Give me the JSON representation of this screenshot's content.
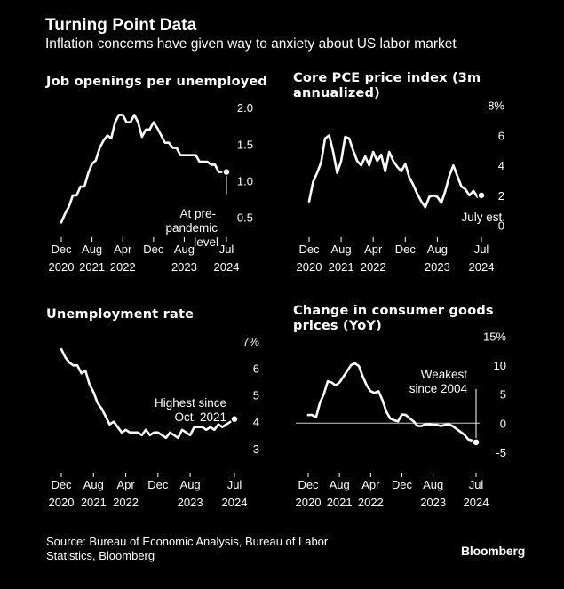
{
  "header": {
    "title": "Turning Point Data",
    "subtitle": "Inflation concerns have given way to anxiety about US labor market"
  },
  "footer": {
    "source": "Source: Bureau of Economic Analysis, Bureau of Labor Statistics, Bloomberg",
    "brand": "Bloomberg"
  },
  "colors": {
    "background": "#000000",
    "line": "#ffffff",
    "baseline": "#cccccc"
  },
  "chart_data": [
    {
      "id": "p1",
      "type": "line",
      "title": "Job openings per unemployed",
      "ylim": [
        0.3,
        2.1
      ],
      "yticks": [
        {
          "value": 2.0,
          "label": "2.0"
        },
        {
          "value": 1.5,
          "label": "1.5"
        },
        {
          "value": 1.0,
          "label": "1.0"
        },
        {
          "value": 0.5,
          "label": "0.5"
        }
      ],
      "xticks": [
        {
          "value": 0,
          "label": [
            "Dec",
            "2020"
          ]
        },
        {
          "value": 8,
          "label": [
            "Aug",
            "2021"
          ]
        },
        {
          "value": 16,
          "label": [
            "Apr",
            "2022"
          ]
        },
        {
          "value": 24,
          "label": [
            "Dec",
            ""
          ]
        },
        {
          "value": 32,
          "label": [
            "Aug",
            "2023"
          ]
        },
        {
          "value": 43,
          "label": [
            "Jul",
            "2024"
          ]
        }
      ],
      "x_unit": "months since Dec 2020",
      "series": [
        {
          "name": "Job openings per unemployed",
          "x": [
            0,
            1,
            2,
            3,
            4,
            5,
            6,
            7,
            8,
            9,
            10,
            11,
            12,
            13,
            14,
            15,
            16,
            17,
            18,
            19,
            20,
            21,
            22,
            23,
            24,
            25,
            26,
            27,
            28,
            29,
            30,
            31,
            32,
            33,
            34,
            35,
            36,
            37,
            38,
            39,
            40,
            41,
            42,
            43
          ],
          "values": [
            0.43,
            0.55,
            0.65,
            0.8,
            0.8,
            0.92,
            0.92,
            1.1,
            1.23,
            1.28,
            1.45,
            1.55,
            1.62,
            1.58,
            1.8,
            1.9,
            1.9,
            1.8,
            1.8,
            1.9,
            1.8,
            1.6,
            1.7,
            1.7,
            1.8,
            1.72,
            1.62,
            1.52,
            1.52,
            1.45,
            1.45,
            1.35,
            1.35,
            1.35,
            1.35,
            1.35,
            1.26,
            1.26,
            1.26,
            1.22,
            1.22,
            1.12,
            1.12,
            1.12
          ]
        }
      ],
      "endpoint": {
        "x": 43,
        "y": 1.12
      },
      "annotation": {
        "lines": [
          "At pre-",
          "pandemic",
          "level"
        ]
      }
    },
    {
      "id": "p2",
      "type": "line",
      "title": "Core PCE price index (3m annualized)",
      "ylim": [
        -0.5,
        8.4
      ],
      "yticks": [
        {
          "value": 8,
          "label": "8%"
        },
        {
          "value": 6,
          "label": "6"
        },
        {
          "value": 4,
          "label": "4"
        },
        {
          "value": 2,
          "label": "2"
        },
        {
          "value": 0,
          "label": "0"
        }
      ],
      "xticks": [
        {
          "value": 0,
          "label": [
            "Dec",
            "2020"
          ]
        },
        {
          "value": 8,
          "label": [
            "Aug",
            "2021"
          ]
        },
        {
          "value": 16,
          "label": [
            "Apr",
            "2022"
          ]
        },
        {
          "value": 24,
          "label": [
            "Dec",
            ""
          ]
        },
        {
          "value": 32,
          "label": [
            "Aug",
            "2023"
          ]
        },
        {
          "value": 43,
          "label": [
            "Jul",
            "2024"
          ]
        }
      ],
      "series": [
        {
          "name": "Core PCE 3m annualized",
          "x": [
            0,
            1,
            2,
            3,
            4,
            5,
            6,
            7,
            8,
            9,
            10,
            11,
            12,
            13,
            14,
            15,
            16,
            17,
            18,
            19,
            20,
            21,
            22,
            23,
            24,
            25,
            26,
            27,
            28,
            29,
            30,
            31,
            32,
            33,
            34,
            35,
            36,
            37,
            38,
            39,
            40,
            41,
            42,
            43
          ],
          "values": [
            1.6,
            2.9,
            3.5,
            4.2,
            5.8,
            6.0,
            4.9,
            3.5,
            4.3,
            5.9,
            5.8,
            5.0,
            4.3,
            4.0,
            4.6,
            4.0,
            4.9,
            4.3,
            4.7,
            3.6,
            4.9,
            4.3,
            3.9,
            3.6,
            4.1,
            3.2,
            2.7,
            2.1,
            1.6,
            1.2,
            1.9,
            2.0,
            1.9,
            1.5,
            2.3,
            3.3,
            4.0,
            3.3,
            2.6,
            2.4,
            2.0,
            2.3,
            1.9,
            2.0
          ]
        }
      ],
      "endpoint": {
        "x": 43,
        "y": 2.0
      },
      "annotation": {
        "lines": [
          "July est."
        ]
      }
    },
    {
      "id": "p3",
      "type": "line",
      "title": "Unemployment rate",
      "ylim": [
        2.5,
        7.3
      ],
      "yticks": [
        {
          "value": 7,
          "label": "7%"
        },
        {
          "value": 6,
          "label": "6"
        },
        {
          "value": 5,
          "label": "5"
        },
        {
          "value": 4,
          "label": "4"
        },
        {
          "value": 3,
          "label": "3"
        }
      ],
      "xticks": [
        {
          "value": 0,
          "label": [
            "Dec",
            "2020"
          ]
        },
        {
          "value": 8,
          "label": [
            "Aug",
            "2021"
          ]
        },
        {
          "value": 16,
          "label": [
            "Apr",
            "2022"
          ]
        },
        {
          "value": 24,
          "label": [
            "Dec",
            ""
          ]
        },
        {
          "value": 32,
          "label": [
            "Aug",
            "2023"
          ]
        },
        {
          "value": 43,
          "label": [
            "Jul",
            "2024"
          ]
        }
      ],
      "series": [
        {
          "name": "Unemployment rate",
          "x": [
            0,
            1,
            2,
            3,
            4,
            5,
            6,
            7,
            8,
            9,
            10,
            11,
            12,
            13,
            14,
            15,
            16,
            17,
            18,
            19,
            20,
            21,
            22,
            23,
            24,
            25,
            26,
            27,
            28,
            29,
            30,
            31,
            32,
            33,
            34,
            35,
            36,
            37,
            38,
            39,
            40,
            41,
            42,
            43
          ],
          "values": [
            6.7,
            6.4,
            6.2,
            6.1,
            6.1,
            5.8,
            5.9,
            5.4,
            5.1,
            4.7,
            4.5,
            4.2,
            3.9,
            4.0,
            3.8,
            3.6,
            3.7,
            3.6,
            3.6,
            3.6,
            3.5,
            3.7,
            3.5,
            3.6,
            3.6,
            3.5,
            3.4,
            3.6,
            3.5,
            3.4,
            3.7,
            3.6,
            3.5,
            3.8,
            3.8,
            3.8,
            3.7,
            3.8,
            3.7,
            3.9,
            3.8,
            3.9,
            4.0,
            4.1
          ]
        }
      ],
      "endpoint": {
        "x": 43,
        "y": 4.1
      },
      "annotation": {
        "lines": [
          "Highest since",
          "Oct. 2021"
        ]
      }
    },
    {
      "id": "p4",
      "type": "line",
      "title": "Change in consumer goods prices (YoY)",
      "ylim": [
        -7.0,
        15.5
      ],
      "yticks": [
        {
          "value": 15,
          "label": "15%"
        },
        {
          "value": 10,
          "label": "10"
        },
        {
          "value": 5,
          "label": "5"
        },
        {
          "value": 0,
          "label": "0"
        },
        {
          "value": -5,
          "label": "-5"
        }
      ],
      "zero_line": 0,
      "xticks": [
        {
          "value": 0,
          "label": [
            "Dec",
            "2020"
          ]
        },
        {
          "value": 8,
          "label": [
            "Aug",
            "2021"
          ]
        },
        {
          "value": 16,
          "label": [
            "Apr",
            "2022"
          ]
        },
        {
          "value": 24,
          "label": [
            "Dec",
            ""
          ]
        },
        {
          "value": 32,
          "label": [
            "Aug",
            "2023"
          ]
        },
        {
          "value": 43,
          "label": [
            "Jul",
            "2024"
          ]
        }
      ],
      "series": [
        {
          "name": "Consumer goods prices YoY",
          "x": [
            0,
            1,
            2,
            3,
            4,
            5,
            6,
            7,
            8,
            9,
            10,
            11,
            12,
            13,
            14,
            15,
            16,
            17,
            18,
            19,
            20,
            21,
            22,
            23,
            24,
            25,
            26,
            27,
            28,
            29,
            30,
            31,
            32,
            33,
            34,
            35,
            36,
            37,
            38,
            39,
            40,
            41,
            42,
            43
          ],
          "values": [
            1.4,
            1.4,
            1.0,
            3.5,
            5.0,
            7.2,
            7.0,
            6.5,
            7.0,
            8.0,
            9.0,
            10.0,
            10.3,
            9.8,
            8.0,
            6.5,
            5.5,
            5.2,
            5.5,
            4.0,
            2.0,
            0.8,
            0.5,
            0.3,
            1.5,
            1.4,
            0.8,
            0.3,
            -0.5,
            -0.5,
            -0.2,
            -0.2,
            -0.3,
            -0.3,
            -0.5,
            -0.3,
            -0.2,
            -0.5,
            -1.0,
            -1.5,
            -2.0,
            -2.8,
            -3.0,
            -3.3
          ]
        }
      ],
      "endpoint": {
        "x": 43,
        "y": -3.3
      },
      "annotation": {
        "lines": [
          "Weakest",
          "since 2004"
        ]
      }
    }
  ]
}
